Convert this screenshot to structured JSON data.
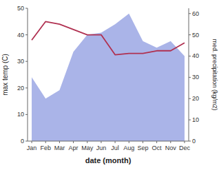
{
  "chart_data": {
    "type": "line",
    "xlabel": "date (month)",
    "ylabel": "max temp (C)",
    "y2label": "med. precipitation (kg/m2)",
    "categories": [
      "Jan",
      "Feb",
      "Mar",
      "Apr",
      "May",
      "Jun",
      "Jul",
      "Aug",
      "Sep",
      "Oct",
      "Nov",
      "Dec"
    ],
    "series": [
      {
        "type": "area",
        "axis": "y2",
        "color": "#aab4e8",
        "values": [
          30,
          20,
          24,
          42,
          50,
          51,
          55,
          60,
          47,
          44,
          47,
          40
        ]
      },
      {
        "type": "line",
        "color": "#b03050",
        "values": [
          38,
          45,
          44,
          42,
          40,
          40,
          32.5,
          33,
          33,
          34,
          34,
          37
        ]
      }
    ],
    "ylim": [
      0,
      50
    ],
    "yticks": [
      0,
      10,
      20,
      30,
      40,
      50
    ],
    "y2lim": [
      0,
      62.5
    ],
    "y2ticks": [
      0,
      10,
      20,
      30,
      40,
      50,
      60
    ],
    "grid": false
  }
}
